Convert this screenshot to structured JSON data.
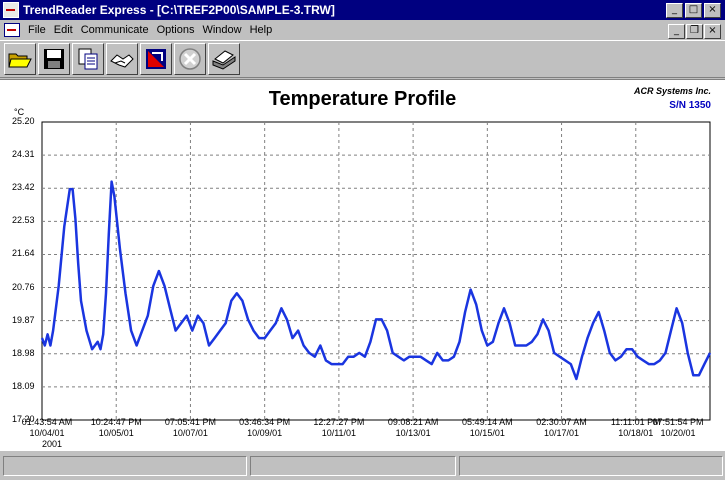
{
  "window": {
    "title": "TrendReader Express - [C:\\TREF2P00\\SAMPLE-3.TRW]",
    "controls": [
      "minimize",
      "maximize",
      "close"
    ]
  },
  "menu": {
    "items": [
      {
        "label": "File"
      },
      {
        "label": "Edit"
      },
      {
        "label": "Communicate"
      },
      {
        "label": "Options"
      },
      {
        "label": "Window"
      },
      {
        "label": "Help"
      }
    ]
  },
  "toolbar": {
    "buttons": [
      {
        "icon": "open-folder-icon"
      },
      {
        "icon": "save-disk-icon"
      },
      {
        "icon": "copy-document-icon"
      },
      {
        "icon": "handshake-icon"
      },
      {
        "icon": "chart-tool-icon"
      },
      {
        "icon": "cancel-icon"
      },
      {
        "icon": "print-icon"
      }
    ]
  },
  "colors": {
    "line": "#1a35e0",
    "grid": "#808080",
    "serial": "#0000c0"
  },
  "chart_data": {
    "type": "line",
    "title": "Temperature Profile",
    "company": "ACR Systems Inc.",
    "serial": "S/N 1350",
    "ylabel": "°C",
    "ylim": [
      17.2,
      25.2
    ],
    "y_ticks": [
      "25.20",
      "24.31",
      "23.42",
      "22.53",
      "21.64",
      "20.76",
      "19.87",
      "18.98",
      "18.09",
      "17.20"
    ],
    "x_ticks": [
      {
        "time": "01:43:54 AM",
        "date": "10/04/01"
      },
      {
        "time": "10:24:47 PM",
        "date": "10/05/01"
      },
      {
        "time": "07:05:41 PM",
        "date": "10/07/01"
      },
      {
        "time": "03:46:34 PM",
        "date": "10/09/01"
      },
      {
        "time": "12:27:27 PM",
        "date": "10/11/01"
      },
      {
        "time": "09:08:21 AM",
        "date": "10/13/01"
      },
      {
        "time": "05:49:14 AM",
        "date": "10/15/01"
      },
      {
        "time": "02:30:07 AM",
        "date": "10/17/01"
      },
      {
        "time": "11:11:01 PM",
        "date": "10/18/01"
      },
      {
        "time": "07:51:54 PM",
        "date": "10/20/01"
      }
    ],
    "year_label": "2001",
    "grid": true,
    "series": [
      {
        "x": [
          0,
          0.1,
          0.2,
          0.3,
          0.4,
          0.6,
          0.8,
          1.0,
          1.1,
          1.2,
          1.3,
          1.4,
          1.6,
          1.8,
          2.0,
          2.1,
          2.2,
          2.3,
          2.4,
          2.5,
          2.6,
          2.8,
          3.0,
          3.2,
          3.4,
          3.6,
          3.8,
          4.0,
          4.2,
          4.4,
          4.6,
          4.8,
          5.0,
          5.2,
          5.4,
          5.6,
          5.8,
          6.0,
          6.2,
          6.4,
          6.6,
          6.8,
          7.0,
          7.2,
          7.4,
          7.6,
          7.8,
          8.0,
          8.2,
          8.4,
          8.6,
          8.8,
          9.0,
          9.2,
          9.4,
          9.6,
          9.8,
          10.0,
          10.2,
          10.4,
          10.6,
          10.8,
          11.0,
          11.2,
          11.4,
          11.6,
          11.8,
          12.0,
          12.2,
          12.4,
          12.6,
          12.8,
          13.0,
          13.2,
          13.4,
          13.6,
          13.8,
          14.0,
          14.2,
          14.4,
          14.6,
          14.8,
          15.0,
          15.2,
          15.4,
          15.6,
          15.8,
          16.0,
          16.2,
          16.4,
          16.6,
          16.8,
          17.0,
          17.2,
          17.4,
          17.6,
          17.8,
          18.0,
          18.2,
          18.4,
          18.6,
          18.8,
          19.0,
          19.2,
          19.4,
          19.6,
          19.8,
          20.0,
          20.2,
          20.4,
          20.6,
          20.8,
          21.0,
          21.2,
          21.4,
          21.6,
          21.8,
          22.0,
          22.2,
          22.4,
          22.6,
          22.8,
          23.0,
          23.2,
          23.4,
          23.6,
          23.8,
          24.0
        ],
        "y": [
          19.4,
          19.2,
          19.5,
          19.2,
          19.6,
          20.8,
          22.4,
          23.4,
          23.4,
          22.6,
          21.4,
          20.4,
          19.6,
          19.1,
          19.3,
          19.1,
          19.5,
          20.6,
          22.2,
          23.6,
          23.2,
          21.8,
          20.6,
          19.6,
          19.2,
          19.6,
          20.0,
          20.8,
          21.2,
          20.8,
          20.2,
          19.6,
          19.8,
          20.0,
          19.6,
          20.0,
          19.8,
          19.2,
          19.4,
          19.6,
          19.8,
          20.4,
          20.6,
          20.4,
          19.9,
          19.6,
          19.4,
          19.4,
          19.6,
          19.8,
          20.2,
          19.9,
          19.4,
          19.6,
          19.2,
          19.0,
          18.9,
          19.2,
          18.8,
          18.7,
          18.7,
          18.7,
          18.9,
          18.9,
          19.0,
          18.9,
          19.3,
          19.9,
          19.9,
          19.6,
          19.0,
          18.9,
          18.8,
          18.9,
          18.9,
          18.9,
          18.8,
          18.7,
          19.0,
          18.8,
          18.8,
          18.9,
          19.3,
          20.1,
          20.7,
          20.3,
          19.6,
          19.2,
          19.3,
          19.8,
          20.2,
          19.8,
          19.2,
          19.2,
          19.2,
          19.3,
          19.5,
          19.9,
          19.6,
          19.0,
          18.9,
          18.8,
          18.7,
          18.3,
          18.9,
          19.4,
          19.8,
          20.1,
          19.6,
          19.0,
          18.8,
          18.9,
          19.1,
          19.1,
          18.9,
          18.8,
          18.7,
          18.7,
          18.8,
          19.0,
          19.6,
          20.2,
          19.8,
          19.0,
          18.4,
          18.4,
          18.7,
          19.0
        ]
      }
    ]
  }
}
